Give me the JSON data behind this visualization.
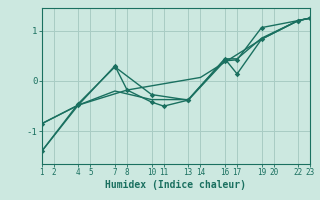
{
  "xlabel": "Humidex (Indice chaleur)",
  "bg_color": "#cce8e0",
  "grid_color": "#a8ccc4",
  "line_color": "#1a7060",
  "xlim": [
    1,
    23
  ],
  "ylim": [
    -1.65,
    1.45
  ],
  "xticks": [
    1,
    2,
    4,
    5,
    7,
    8,
    10,
    11,
    13,
    14,
    16,
    17,
    19,
    20,
    22,
    23
  ],
  "yticks": [
    -1,
    0,
    1
  ],
  "line1_x": [
    1,
    4,
    7,
    10,
    13,
    16,
    17,
    19,
    22,
    23
  ],
  "line1_y": [
    -1.4,
    -0.45,
    0.28,
    -0.27,
    -0.38,
    0.4,
    0.42,
    1.06,
    1.2,
    1.25
  ],
  "line2_x": [
    1,
    4,
    7,
    10,
    13,
    16,
    17,
    19,
    22,
    23
  ],
  "line2_y": [
    -0.85,
    -0.48,
    -0.2,
    -0.37,
    -0.37,
    0.44,
    0.44,
    0.85,
    1.2,
    1.25
  ],
  "line3_x": [
    1,
    4,
    7,
    8,
    10,
    11,
    13,
    16,
    17,
    19,
    22,
    23
  ],
  "line3_y": [
    -0.85,
    -0.48,
    0.3,
    -0.18,
    -0.42,
    -0.5,
    -0.38,
    0.44,
    0.14,
    0.83,
    1.2,
    1.25
  ],
  "line4_x": [
    1,
    4,
    8,
    14,
    19,
    22,
    23
  ],
  "line4_y": [
    -1.4,
    -0.48,
    -0.18,
    0.07,
    0.83,
    1.2,
    1.25
  ]
}
